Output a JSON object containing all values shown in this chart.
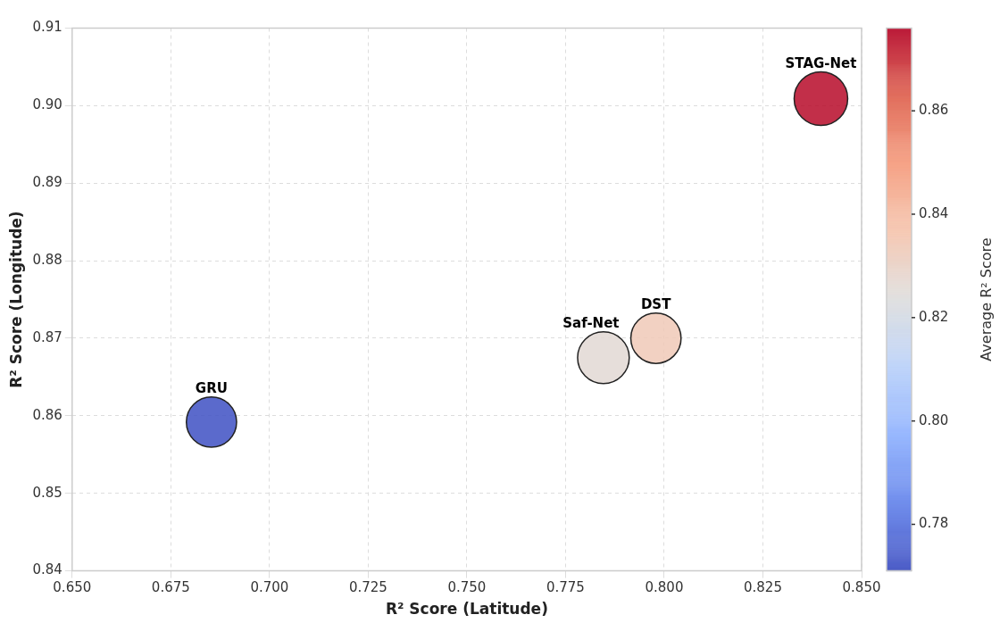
{
  "chart_data": {
    "type": "bubble",
    "xlabel": "R² Score (Latitude)",
    "ylabel": "R² Score (Longitude)",
    "clabel": "Average R² Score",
    "xlim": [
      0.65,
      0.85
    ],
    "xticks": [
      {
        "value": 0.65,
        "label": "0.650"
      },
      {
        "value": 0.675,
        "label": "0.675"
      },
      {
        "value": 0.7,
        "label": "0.700"
      },
      {
        "value": 0.725,
        "label": "0.725"
      },
      {
        "value": 0.75,
        "label": "0.750"
      },
      {
        "value": 0.775,
        "label": "0.775"
      },
      {
        "value": 0.8,
        "label": "0.800"
      },
      {
        "value": 0.825,
        "label": "0.825"
      },
      {
        "value": 0.85,
        "label": "0.850"
      }
    ],
    "ylim": [
      0.84,
      0.91
    ],
    "yticks": [
      {
        "value": 0.84,
        "label": "0.84"
      },
      0.85,
      0.86,
      0.87,
      0.88,
      0.89,
      {
        "value": 0.9,
        "label": "0.90"
      },
      0.91
    ],
    "clim": [
      0.771,
      0.876
    ],
    "cticks": [
      0.78,
      {
        "value": 0.8,
        "label": "0.80"
      },
      0.82,
      0.84,
      0.86
    ],
    "grid": true,
    "series": [
      {
        "name": "GRU",
        "x": [
          0.6853
        ],
        "values": [
          0.8592
        ],
        "sizes": [
          0.88
        ],
        "cvalues": [
          0.772
        ]
      },
      {
        "name": "Saf-Net",
        "x": [
          0.7846
        ],
        "values": [
          0.8675
        ],
        "sizes": [
          0.93
        ],
        "cvalues": [
          0.826
        ]
      },
      {
        "name": "DST",
        "x": [
          0.7979
        ],
        "values": [
          0.87
        ],
        "sizes": [
          0.88
        ],
        "cvalues": [
          0.834
        ]
      },
      {
        "name": "STAG-Net",
        "x": [
          0.8397
        ],
        "values": [
          0.9009
        ],
        "sizes": [
          1
        ],
        "cvalues": [
          0.875
        ]
      }
    ]
  }
}
